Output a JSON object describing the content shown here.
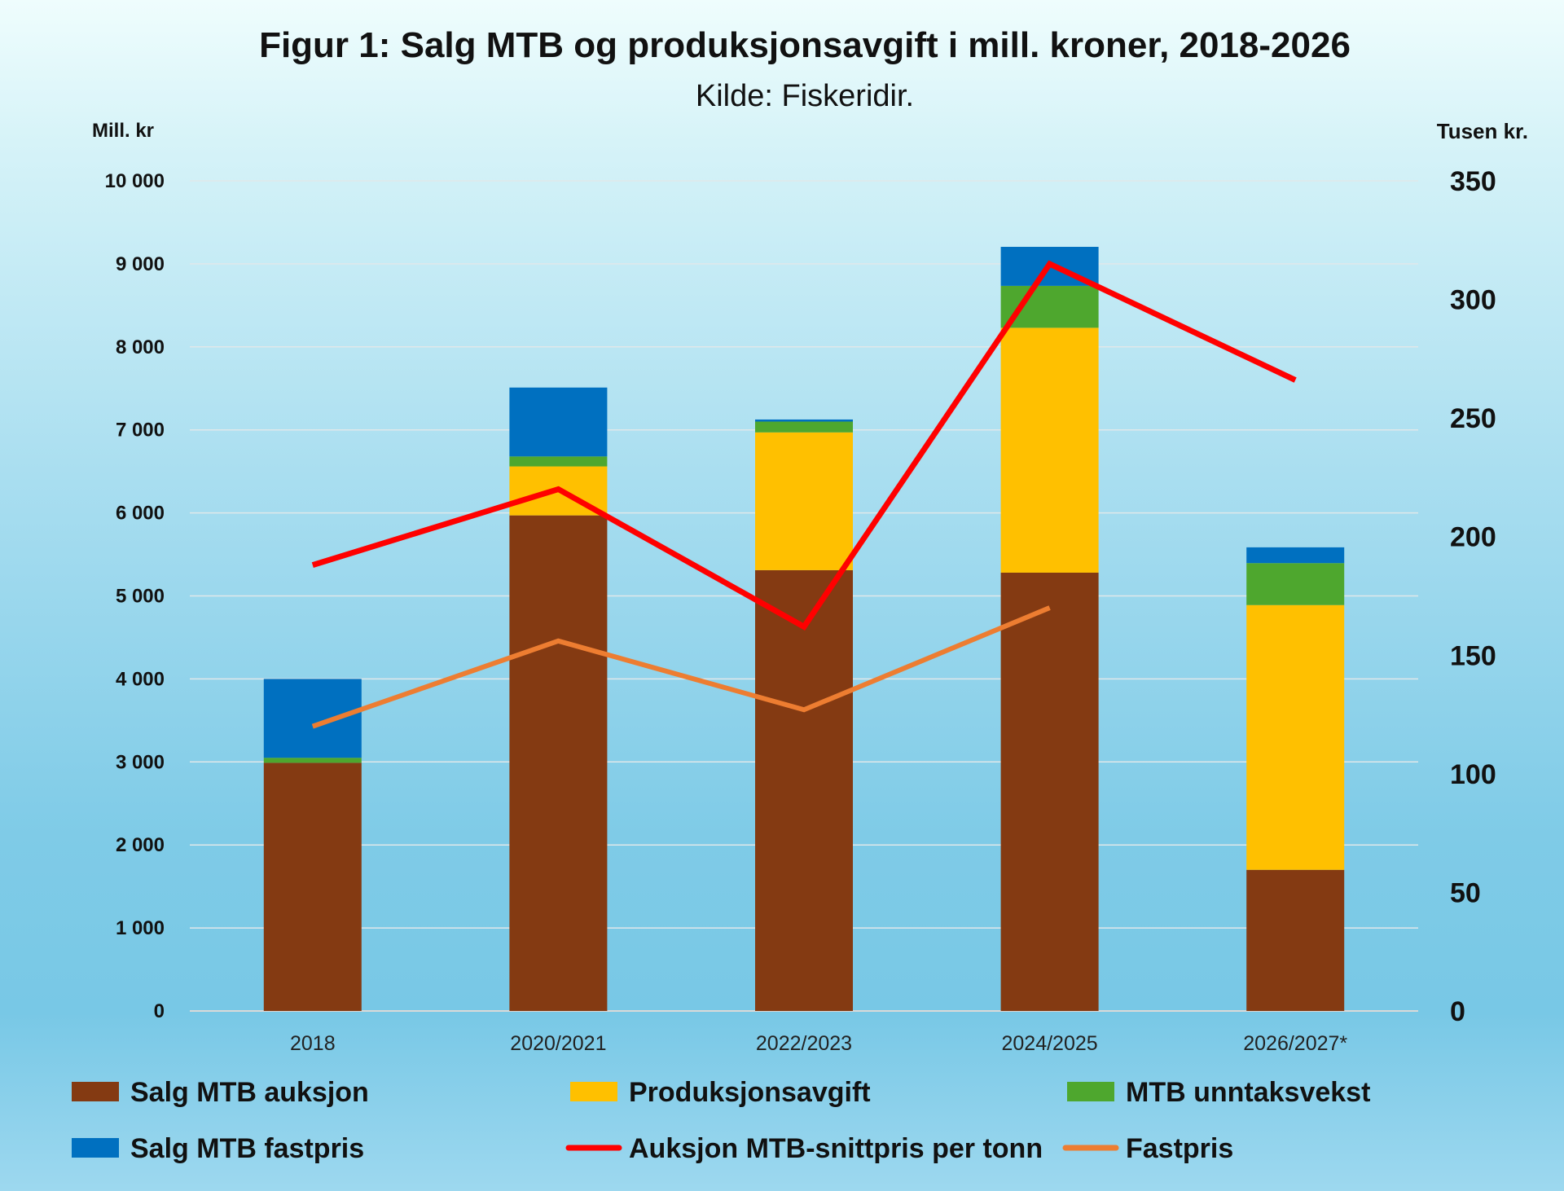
{
  "chart_data": {
    "type": "bar",
    "stacked": true,
    "title": "Figur 1: Salg MTB og produksjonsavgift i mill. kroner, 2018-2026",
    "subtitle": "Kilde: Fiskeridir.",
    "ylabel": "Mill. kr",
    "y2label": "Tusen kr.",
    "ylim": [
      0,
      10000
    ],
    "y2lim": [
      0,
      350
    ],
    "yticks": [
      "0",
      "1 000",
      "2 000",
      "3 000",
      "4 000",
      "5 000",
      "6 000",
      "7 000",
      "8 000",
      "9 000",
      "10 000"
    ],
    "y2ticks": [
      "0",
      "50",
      "100",
      "150",
      "200",
      "250",
      "300",
      "350"
    ],
    "grid": true,
    "legend_position": "bottom",
    "categories": [
      "2018",
      "2020/2021",
      "2022/2023",
      "2024/2025",
      "2026/2027*"
    ],
    "series": [
      {
        "name": "Salg MTB auksjon",
        "type": "bar",
        "axis": "left",
        "color": "#843a12",
        "values": [
          2990,
          5970,
          5310,
          5280,
          1700
        ]
      },
      {
        "name": "Produksjonsavgift",
        "type": "bar",
        "axis": "left",
        "color": "#ffc000",
        "values": [
          0,
          590,
          1660,
          2950,
          3190
        ]
      },
      {
        "name": "MTB unntaksvekst",
        "type": "bar",
        "axis": "left",
        "color": "#4ea72e",
        "values": [
          60,
          120,
          130,
          505,
          505
        ]
      },
      {
        "name": "Salg MTB fastpris",
        "type": "bar",
        "axis": "left",
        "color": "#0070c0",
        "values": [
          950,
          830,
          25,
          470,
          190
        ]
      },
      {
        "name": "Auksjon MTB-snittpris per tonn",
        "type": "line",
        "axis": "right",
        "color": "#ff0000",
        "values": [
          188,
          220,
          162,
          315,
          266
        ]
      },
      {
        "name": "Fastpris",
        "type": "line",
        "axis": "right",
        "color": "#ed7d31",
        "values": [
          120,
          156,
          127,
          170,
          null
        ]
      }
    ]
  }
}
